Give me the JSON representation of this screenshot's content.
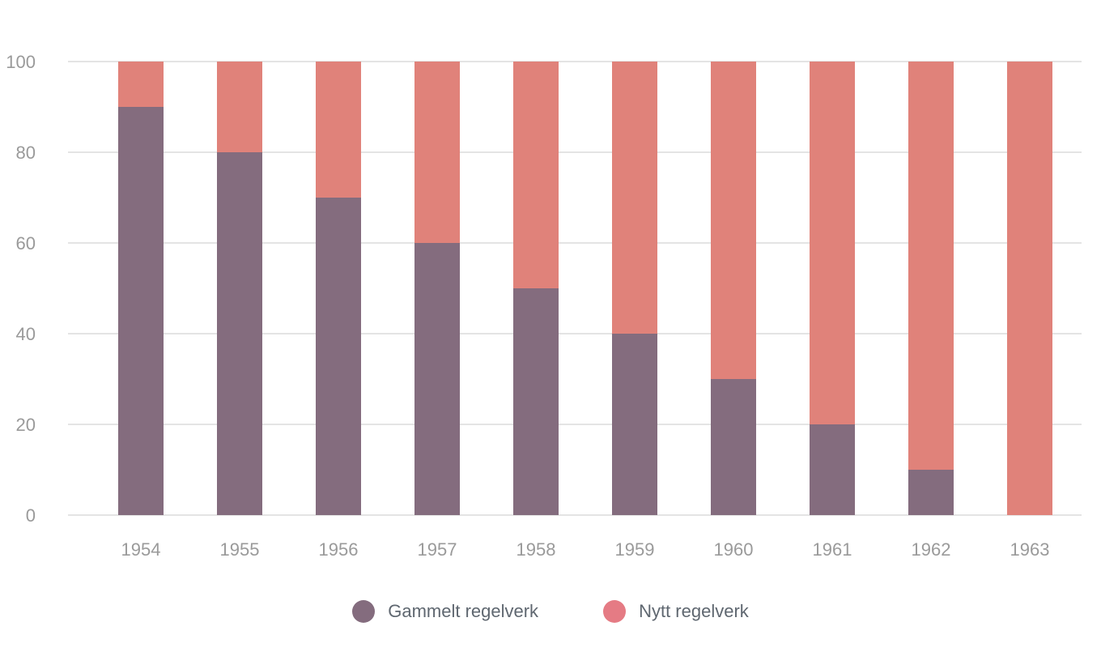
{
  "chart_data": {
    "type": "bar",
    "stacked": true,
    "categories": [
      "1954",
      "1955",
      "1956",
      "1957",
      "1958",
      "1959",
      "1960",
      "1961",
      "1962",
      "1963"
    ],
    "series": [
      {
        "name": "Gammelt regelverk",
        "color": "#846c7e",
        "legend_color": "#846c7e",
        "values": [
          90,
          80,
          70,
          60,
          50,
          40,
          30,
          20,
          10,
          0
        ]
      },
      {
        "name": "Nytt regelverk",
        "color": "#e0827a",
        "legend_color": "#e57b84",
        "values": [
          10,
          20,
          30,
          40,
          50,
          60,
          70,
          80,
          90,
          100
        ]
      }
    ],
    "ylim": [
      0,
      100
    ],
    "yticks": [
      0,
      20,
      40,
      60,
      80,
      100
    ],
    "title": "",
    "xlabel": "",
    "ylabel": "",
    "grid": true,
    "legend_position": "bottom-center"
  }
}
